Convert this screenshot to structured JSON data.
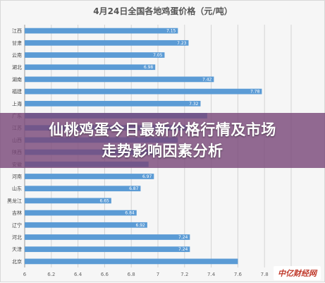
{
  "chart_data": {
    "type": "bar",
    "orientation": "horizontal",
    "title": "4月24日全国各地鸡蛋价格（元/吨）",
    "categories": [
      "江西",
      "甘肃",
      "云南",
      "湖北",
      "湖南",
      "福建",
      "上海",
      "广东",
      "江苏",
      "山西",
      "陕西",
      "安徽",
      "河南",
      "山东",
      "黑龙江",
      "吉林",
      "辽宁",
      "河北",
      "天津",
      "北京"
    ],
    "values": [
      7.15,
      7.23,
      7.05,
      6.98,
      7.42,
      7.78,
      7.32,
      7.37,
      7.25,
      7.15,
      7.0,
      6.93,
      6.97,
      6.87,
      6.65,
      6.84,
      6.92,
      7.24,
      7.24,
      7.6
    ],
    "data_labels": [
      "7.15",
      "7.23",
      "7.05",
      "6.98",
      "7.42",
      "7.78",
      "7.32",
      "",
      "",
      "",
      "",
      "",
      "6.97",
      "6.87",
      "6.65",
      "6.84",
      "6.92",
      "7.24",
      "7.24",
      ""
    ],
    "xlim": [
      6.0,
      8.0
    ],
    "x_ticks": [
      "6",
      "6.2",
      "6.4",
      "6.6",
      "6.8",
      "7",
      "7.2",
      "7.4",
      "7.6",
      "7.8",
      "8"
    ],
    "grid": true,
    "bar_color": "#5b9bd5"
  },
  "overlay": {
    "line1": "仙桃鸡蛋今日最新价格行情及市场",
    "line2": "走势影响因素分析"
  },
  "watermark": {
    "logo": "中亿财经网",
    "text": "中亿财经网"
  }
}
